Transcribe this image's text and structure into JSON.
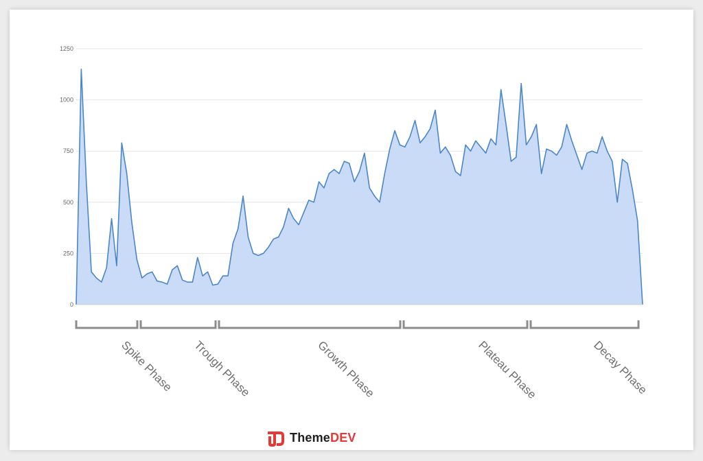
{
  "chart_data": {
    "type": "area",
    "title": "",
    "xlabel": "",
    "ylabel": "",
    "ylim": [
      0,
      1250
    ],
    "yticks": [
      0,
      250,
      500,
      750,
      1000,
      1250
    ],
    "grid": true,
    "series": [
      {
        "values": [
          0,
          1150,
          600,
          160,
          130,
          110,
          180,
          420,
          190,
          790,
          640,
          400,
          220,
          130,
          150,
          160,
          115,
          110,
          100,
          170,
          190,
          120,
          110,
          110,
          230,
          140,
          160,
          95,
          100,
          140,
          140,
          300,
          370,
          530,
          330,
          250,
          240,
          250,
          280,
          320,
          330,
          380,
          470,
          420,
          390,
          450,
          510,
          500,
          600,
          570,
          640,
          660,
          640,
          700,
          690,
          600,
          650,
          740,
          570,
          530,
          500,
          640,
          760,
          850,
          780,
          770,
          820,
          900,
          790,
          820,
          860,
          950,
          740,
          770,
          730,
          650,
          630,
          780,
          750,
          800,
          770,
          740,
          810,
          780,
          1050,
          880,
          700,
          720,
          1080,
          780,
          820,
          880,
          640,
          760,
          750,
          730,
          770,
          880,
          800,
          730,
          660,
          740,
          750,
          740,
          820,
          750,
          700,
          500,
          710,
          690,
          560,
          410,
          0
        ]
      }
    ],
    "phases": [
      {
        "label": "Spike Phase"
      },
      {
        "label": "Trough Phase"
      },
      {
        "label": "Growth Phase"
      },
      {
        "label": "Plateau Phase"
      },
      {
        "label": "Decay Phase"
      }
    ],
    "colors": {
      "line": "#4a86c8",
      "fill": "#c6d9f6",
      "bracket": "#8c8c8c",
      "grid": "#e4e4e4"
    }
  },
  "brand": {
    "name": "Theme",
    "name_accent": "DEV",
    "logo_icon": "themedev-logo-icon",
    "colors": {
      "accent": "#e53935",
      "text": "#1f1f1f"
    }
  }
}
